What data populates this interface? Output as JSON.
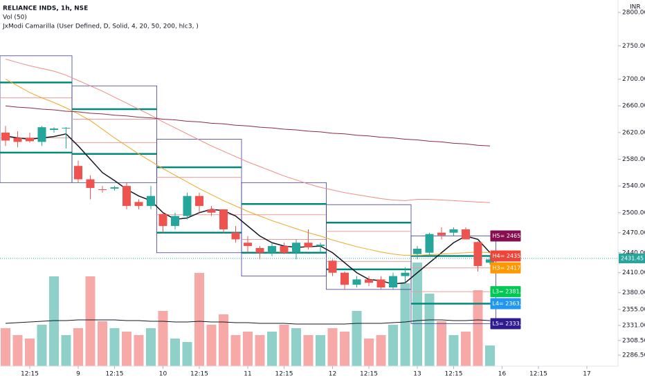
{
  "chart_data": {
    "type": "candlestick",
    "title": "RELIANCE INDS, 1h, NSE",
    "subtitle": "Vol (50)",
    "indicator": "JxModi Camarilla (User Defined, D, Solid, 4, 20, 50, 200, hlc3, )",
    "currency": "INR",
    "up_color": "#26a69a",
    "down_color": "#ef5350",
    "open": [
      2620,
      2612,
      2612,
      2606,
      2624,
      2626,
      2570,
      2550,
      2535,
      2536,
      2540,
      2516,
      2510,
      2498,
      2480,
      2495,
      2525,
      2505,
      2505,
      2470,
      2455,
      2447,
      2440,
      2450,
      2440,
      2455,
      2450,
      2428,
      2410,
      2392,
      2400,
      2400,
      2388,
      2405,
      2438,
      2440,
      2470,
      2470,
      2475,
      2456,
      2425
    ],
    "high": [
      2630,
      2622,
      2620,
      2630,
      2628,
      2628,
      2578,
      2556,
      2540,
      2540,
      2545,
      2520,
      2540,
      2500,
      2500,
      2530,
      2530,
      2510,
      2505,
      2480,
      2465,
      2450,
      2455,
      2455,
      2460,
      2475,
      2455,
      2430,
      2412,
      2405,
      2405,
      2405,
      2410,
      2418,
      2450,
      2470,
      2478,
      2478,
      2478,
      2457,
      2435
    ],
    "low": [
      2600,
      2598,
      2605,
      2600,
      2620,
      2596,
      2545,
      2520,
      2530,
      2533,
      2505,
      2505,
      2505,
      2470,
      2475,
      2490,
      2500,
      2495,
      2470,
      2455,
      2440,
      2430,
      2435,
      2438,
      2430,
      2445,
      2440,
      2405,
      2385,
      2388,
      2390,
      2385,
      2385,
      2395,
      2430,
      2435,
      2460,
      2465,
      2460,
      2412,
      2422
    ],
    "close": [
      2608,
      2606,
      2607,
      2628,
      2626,
      2627,
      2550,
      2537,
      2534,
      2538,
      2510,
      2510,
      2525,
      2480,
      2495,
      2525,
      2510,
      2500,
      2475,
      2460,
      2450,
      2440,
      2450,
      2440,
      2455,
      2448,
      2452,
      2410,
      2392,
      2400,
      2395,
      2388,
      2405,
      2410,
      2446,
      2468,
      2466,
      2475,
      2460,
      2420,
      2430
    ],
    "volume": {
      "ylim": [
        0,
        150
      ],
      "values": [
        55,
        45,
        40,
        60,
        130,
        45,
        55,
        130,
        65,
        55,
        50,
        45,
        55,
        80,
        40,
        35,
        135,
        60,
        75,
        45,
        50,
        45,
        50,
        60,
        55,
        45,
        45,
        55,
        50,
        80,
        40,
        45,
        60,
        120,
        150,
        105,
        65,
        45,
        50,
        110,
        30
      ],
      "up_color": "#8fd0c9",
      "down_color": "#f7a9a7",
      "ma_color": "#131722",
      "ma": [
        62,
        63,
        64,
        65,
        66,
        66,
        67,
        67,
        67,
        67,
        66,
        66,
        65,
        65,
        64,
        64,
        65,
        64,
        64,
        63,
        63,
        62,
        62,
        62,
        61,
        61,
        61,
        61,
        61,
        62,
        62,
        62,
        63,
        64,
        66,
        67,
        67,
        66,
        66,
        67,
        66
      ]
    },
    "lines": [
      {
        "color": "#131722",
        "values": [
          2615,
          2612,
          2610,
          2612,
          2614,
          2618,
          2600,
          2580,
          2560,
          2548,
          2535,
          2525,
          2518,
          2500,
          2490,
          2492,
          2500,
          2505,
          2503,
          2495,
          2480,
          2465,
          2455,
          2450,
          2448,
          2449,
          2450,
          2440,
          2425,
          2410,
          2400,
          2398,
          2393,
          2395,
          2410,
          2425,
          2440,
          2455,
          2465,
          2460,
          2440
        ]
      },
      {
        "color": "#f5a623",
        "values": [
          2700,
          2690,
          2680,
          2672,
          2665,
          2657,
          2648,
          2638,
          2625,
          2612,
          2600,
          2588,
          2577,
          2566,
          2556,
          2546,
          2536,
          2527,
          2518,
          2510,
          2502,
          2495,
          2488,
          2482,
          2476,
          2470,
          2465,
          2459,
          2454,
          2449,
          2445,
          2441,
          2438,
          2436,
          2436,
          2437,
          2438,
          2439,
          2440,
          2441,
          2440
        ]
      },
      {
        "color": "#f28b82",
        "values": [
          2730,
          2725,
          2720,
          2716,
          2712,
          2706,
          2698,
          2690,
          2682,
          2673,
          2664,
          2655,
          2646,
          2636,
          2627,
          2618,
          2609,
          2600,
          2592,
          2584,
          2576,
          2569,
          2562,
          2555,
          2549,
          2543,
          2538,
          2534,
          2530,
          2527,
          2524,
          2521,
          2519,
          2518,
          2520,
          2520,
          2519,
          2518,
          2517,
          2516,
          2515
        ]
      },
      {
        "color": "#8d2a3f",
        "values": [
          2660,
          2658,
          2657,
          2655,
          2654,
          2652,
          2651,
          2649,
          2648,
          2646,
          2645,
          2643,
          2642,
          2640,
          2639,
          2637,
          2636,
          2634,
          2633,
          2631,
          2630,
          2628,
          2627,
          2625,
          2624,
          2622,
          2621,
          2619,
          2618,
          2616,
          2615,
          2613,
          2612,
          2610,
          2609,
          2607,
          2606,
          2604,
          2603,
          2601,
          2600
        ]
      }
    ],
    "camarilla_colors": [
      "#3c3c9c",
      "#00897b",
      "#ef9a9a",
      "#ef9a9a",
      "#00897b",
      "#3c3c9c"
    ],
    "camarilla": [
      [
        2735,
        2695,
        2672,
        2612,
        2590,
        2545
      ],
      [
        2690,
        2655,
        2640,
        2605,
        2588,
        2545
      ],
      [
        2610,
        2568,
        2553,
        2497,
        2470,
        2440
      ],
      [
        2545,
        2513,
        2497,
        2460,
        2440,
        2405
      ],
      [
        2512,
        2485,
        2472,
        2427,
        2415,
        2385
      ],
      [
        2465.1,
        2435.1,
        2417.2,
        2381.6,
        2363.7,
        2333.7
      ]
    ],
    "level_tags": [
      {
        "label": "H5= 2465.1",
        "color": "#880e4f"
      },
      {
        "label": "H4= 2435.1",
        "color": "#f44336"
      },
      {
        "label": "H3= 2417.2",
        "color": "#ff9800"
      },
      {
        "label": "L3= 2381.6",
        "color": "#00c853"
      },
      {
        "label": "L4= 2363.7",
        "color": "#2196f3"
      },
      {
        "label": "L5= 2333.7",
        "color": "#311b92"
      }
    ],
    "last_price": 2431.45,
    "ylim": [
      2270,
      2818.6
    ],
    "yticks": [
      {
        "value": 2800,
        "label": "2800.00"
      },
      {
        "value": 2750,
        "label": "2750.00"
      },
      {
        "value": 2700,
        "label": "2700.00"
      },
      {
        "value": 2660,
        "label": "2660.00"
      },
      {
        "value": 2620,
        "label": "2620.00"
      },
      {
        "value": 2580,
        "label": "2580.00"
      },
      {
        "value": 2540,
        "label": "2540.00"
      },
      {
        "value": 2500,
        "label": "2500.00"
      },
      {
        "value": 2470,
        "label": "2470.00"
      },
      {
        "value": 2440,
        "label": "2440.00"
      },
      {
        "value": 2410,
        "label": "2410.00"
      },
      {
        "value": 2380,
        "label": "2380.00"
      },
      {
        "value": 2355,
        "label": "2355.00"
      },
      {
        "value": 2331,
        "label": "2331.00"
      },
      {
        "value": 2308.5,
        "label": "2308.50"
      },
      {
        "value": 2286.5,
        "label": "2286.50"
      }
    ],
    "xticks": [
      {
        "value": 2,
        "label": "12:15"
      },
      {
        "value": 6,
        "label": "9"
      },
      {
        "value": 9,
        "label": "12:15"
      },
      {
        "value": 13,
        "label": "10"
      },
      {
        "value": 16,
        "label": "12:15"
      },
      {
        "value": 20,
        "label": "11"
      },
      {
        "value": 23,
        "label": "12:15"
      },
      {
        "value": 27,
        "label": "12"
      },
      {
        "value": 30,
        "label": "12:15"
      },
      {
        "value": 34,
        "label": "13"
      },
      {
        "value": 37,
        "label": "12:15"
      },
      {
        "value": 41,
        "label": "16"
      },
      {
        "value": 44,
        "label": "12:15"
      },
      {
        "value": 48,
        "label": "17"
      }
    ]
  }
}
